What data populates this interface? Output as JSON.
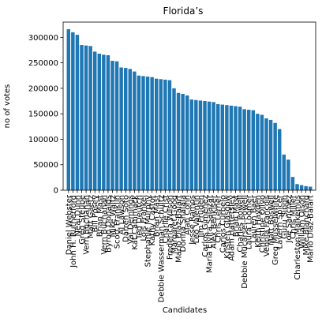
{
  "chart_data": {
    "type": "bar",
    "title": "Florida’s",
    "xlabel": "Candidates",
    "ylabel": "no of votes",
    "ylim": [
      0,
      330000
    ],
    "yticks": [
      0,
      50000,
      100000,
      150000,
      200000,
      250000,
      300000
    ],
    "grid": false,
    "bar_color": "#1f77b4",
    "categories": [
      "Daniel Webster",
      "John H. Rutherford",
      "Neal Dunn",
      "Greg Steube",
      "Vern Buchanan",
      "Matt Gaetz",
      "Bill Posey",
      "Brian Mast",
      "Vern Buchanan",
      "Byron Donalds",
      "Mike Waltz",
      "Scott Franklin",
      "Al Lawson",
      "Darren Soto",
      "Val Demings",
      "Kat Cammack",
      "Ted Deutch",
      "Lois Frankel",
      "Stephanie Murphy",
      "Kathy Castor",
      "Brian Mast",
      "Debbie Wasserman Schultz",
      "Charlie Crist",
      "Frederica Wilson",
      "Margaret Good",
      "Mario Diaz-Balart",
      "Donna Shalala",
      "Alan Cohn",
      "Jesse Ramos",
      "Leo Valentin",
      "Jim Pruden",
      "Carlos Gimenez",
      "Maria Elvira Salazar",
      "Alex Benkiser",
      "Chris Lerner",
      "Carlos Curbelo",
      "Kristen Glasgow",
      "Adam Hattersley",
      "Brian Mast",
      "Charles Powell",
      "Debbie Mucarsel-Powell",
      "Laura Loomer",
      "Lauren Baer",
      "Keith Hayden",
      "Christine Olivo",
      "Vennia Francois",
      "Matt Boswell",
      "Greg Musselwhite",
      "Lavern Spicer",
      "Guru Singh",
      "Joe Sanchez",
      "Chris Miller",
      "Charleston Malkemus",
      "William Olson",
      "Mike Blanchard",
      "Mario Diaz-Balart"
    ],
    "values": [
      316000,
      310000,
      305000,
      285000,
      284000,
      283000,
      272000,
      268000,
      266000,
      265000,
      254000,
      253000,
      241000,
      240000,
      238000,
      233000,
      225000,
      224000,
      223000,
      222000,
      219000,
      218000,
      217000,
      216000,
      200000,
      191000,
      189000,
      186000,
      178000,
      177000,
      176000,
      175000,
      174000,
      173000,
      169000,
      168000,
      167000,
      166000,
      165000,
      164000,
      159000,
      158000,
      157000,
      150000,
      148000,
      141000,
      138000,
      132000,
      120000,
      70000,
      60000,
      26000,
      12000,
      10000,
      8000,
      7000
    ]
  }
}
